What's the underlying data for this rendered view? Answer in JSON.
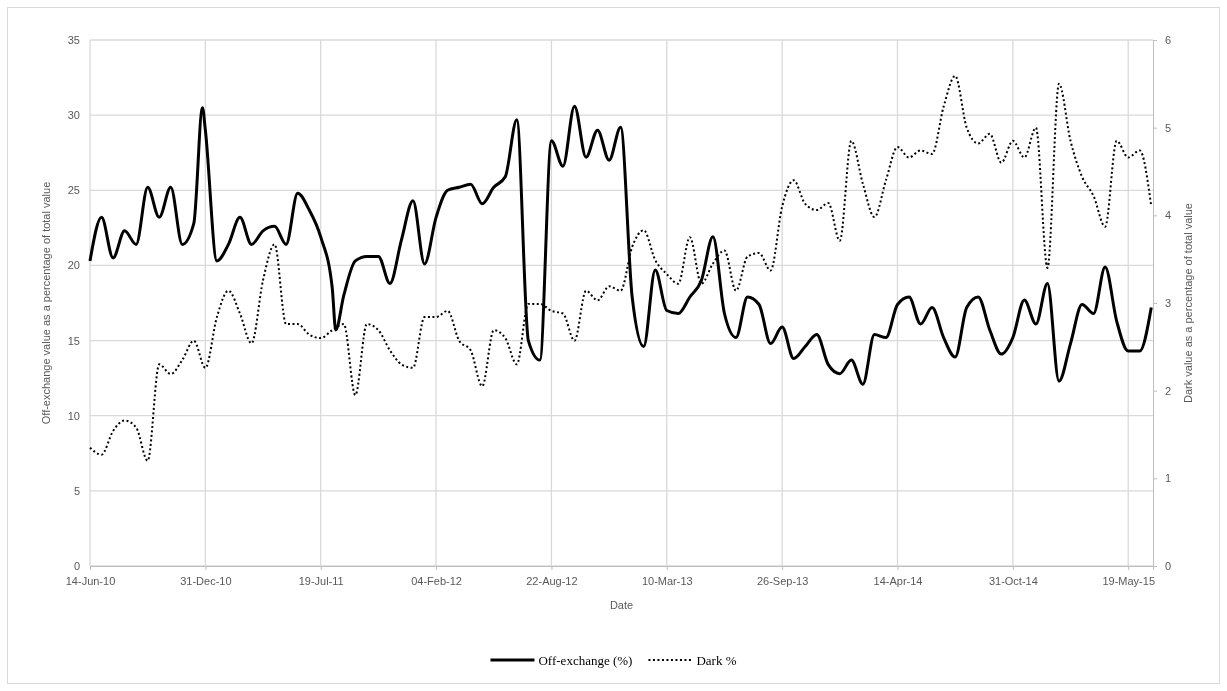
{
  "chart_data": {
    "type": "line",
    "xlabel": "Date",
    "ylabel": "Off-exchange value as a percentage of total value",
    "y2label": "Dark value as a percentage of total value",
    "xlim": [
      "2010-06-14",
      "2015-07-01"
    ],
    "xticks": [
      {
        "value": "2010-06-14",
        "label": "14-Jun-10"
      },
      {
        "value": "2010-12-31",
        "label": "31-Dec-10"
      },
      {
        "value": "2011-07-19",
        "label": "19-Jul-11"
      },
      {
        "value": "2012-02-04",
        "label": "04-Feb-12"
      },
      {
        "value": "2012-08-22",
        "label": "22-Aug-12"
      },
      {
        "value": "2013-03-10",
        "label": "10-Mar-13"
      },
      {
        "value": "2013-09-26",
        "label": "26-Sep-13"
      },
      {
        "value": "2014-04-14",
        "label": "14-Apr-14"
      },
      {
        "value": "2014-10-31",
        "label": "31-Oct-14"
      },
      {
        "value": "2015-05-19",
        "label": "19-May-15"
      }
    ],
    "ylim": [
      0,
      35
    ],
    "yticks": [
      0,
      5,
      10,
      15,
      20,
      25,
      30,
      35
    ],
    "y2lim": [
      0,
      6
    ],
    "y2ticks": [
      0,
      1,
      2,
      3,
      4,
      5,
      6
    ],
    "grid": true,
    "legend": "bottom",
    "series": [
      {
        "name": "Off-exchange (%)",
        "color": "#000000",
        "line_style": "solid",
        "x": [
          "2010-06-14",
          "2010-07-04",
          "2010-07-24",
          "2010-08-13",
          "2010-09-02",
          "2010-09-22",
          "2010-10-12",
          "2010-11-01",
          "2010-11-21",
          "2010-12-11",
          "2010-12-26",
          "2010-12-31",
          "2011-01-20",
          "2011-02-09",
          "2011-03-01",
          "2011-03-21",
          "2011-04-10",
          "2011-04-30",
          "2011-05-20",
          "2011-06-09",
          "2011-06-29",
          "2011-07-19",
          "2011-08-08",
          "2011-08-14",
          "2011-08-28",
          "2011-09-17",
          "2011-10-07",
          "2011-10-27",
          "2011-11-16",
          "2011-12-06",
          "2011-12-26",
          "2012-01-15",
          "2012-02-04",
          "2012-02-24",
          "2012-03-15",
          "2012-04-04",
          "2012-04-24",
          "2012-05-14",
          "2012-06-03",
          "2012-06-23",
          "2012-07-13",
          "2012-08-02",
          "2012-08-22",
          "2012-09-11",
          "2012-10-01",
          "2012-10-21",
          "2012-11-10",
          "2012-11-30",
          "2012-12-20",
          "2013-01-09",
          "2013-01-29",
          "2013-02-18",
          "2013-03-10",
          "2013-03-30",
          "2013-04-19",
          "2013-05-09",
          "2013-05-29",
          "2013-06-18",
          "2013-07-08",
          "2013-07-28",
          "2013-08-17",
          "2013-09-06",
          "2013-09-26",
          "2013-10-16",
          "2013-11-05",
          "2013-11-25",
          "2013-12-15",
          "2014-01-04",
          "2014-01-24",
          "2014-02-13",
          "2014-03-05",
          "2014-03-25",
          "2014-04-14",
          "2014-05-04",
          "2014-05-24",
          "2014-06-13",
          "2014-07-03",
          "2014-07-23",
          "2014-08-12",
          "2014-09-01",
          "2014-09-21",
          "2014-10-11",
          "2014-10-31",
          "2014-11-20",
          "2014-12-10",
          "2014-12-30",
          "2015-01-19",
          "2015-02-08",
          "2015-02-28",
          "2015-03-20",
          "2015-04-09",
          "2015-04-29",
          "2015-05-19",
          "2015-06-08",
          "2015-06-28"
        ],
        "values": [
          20.3,
          23.2,
          20.5,
          22.3,
          21.4,
          25.2,
          23.2,
          25.2,
          21.4,
          22.8,
          30.5,
          29,
          20.3,
          21.4,
          23.2,
          21.4,
          22.3,
          22.6,
          21.4,
          24.8,
          23.7,
          21.9,
          18.5,
          15.7,
          18,
          20.3,
          20.6,
          20.6,
          18.8,
          21.7,
          24.3,
          20.1,
          23.2,
          25,
          25.2,
          25.4,
          24.1,
          25.2,
          25.9,
          29.7,
          15,
          13.7,
          28.3,
          26.6,
          30.6,
          27.2,
          29,
          27,
          29.2,
          17.9,
          14.6,
          19.7,
          17,
          16.8,
          17.9,
          19,
          21.9,
          16.8,
          15.2,
          17.9,
          17.4,
          14.8,
          15.9,
          13.8,
          14.6,
          15.4,
          13.4,
          12.8,
          13.7,
          12.1,
          15.4,
          15.2,
          17.4,
          17.9,
          16.1,
          17.2,
          15.2,
          13.9,
          17.2,
          17.9,
          15.7,
          14.1,
          15.2,
          17.7,
          16.1,
          18.8,
          12.3,
          14.8,
          17.4,
          16.8,
          19.9,
          16.3,
          14.3,
          14.3,
          17.2
        ]
      },
      {
        "name": "Dark %",
        "color": "#000000",
        "line_style": "dotted",
        "axis": "y2",
        "x": [
          "2010-06-14",
          "2010-07-04",
          "2010-07-24",
          "2010-08-13",
          "2010-09-02",
          "2010-09-22",
          "2010-10-12",
          "2010-11-01",
          "2010-11-21",
          "2010-12-11",
          "2010-12-31",
          "2011-01-20",
          "2011-02-09",
          "2011-03-01",
          "2011-03-21",
          "2011-04-10",
          "2011-04-30",
          "2011-05-20",
          "2011-06-09",
          "2011-06-29",
          "2011-07-19",
          "2011-08-08",
          "2011-08-28",
          "2011-09-17",
          "2011-10-07",
          "2011-10-27",
          "2011-11-16",
          "2011-12-06",
          "2011-12-26",
          "2012-01-15",
          "2012-02-04",
          "2012-02-24",
          "2012-03-15",
          "2012-04-04",
          "2012-04-24",
          "2012-05-14",
          "2012-06-03",
          "2012-06-23",
          "2012-07-13",
          "2012-08-02",
          "2012-08-22",
          "2012-09-11",
          "2012-10-01",
          "2012-10-21",
          "2012-11-10",
          "2012-11-30",
          "2012-12-20",
          "2013-01-09",
          "2013-01-29",
          "2013-02-18",
          "2013-03-10",
          "2013-03-30",
          "2013-04-19",
          "2013-05-09",
          "2013-05-29",
          "2013-06-18",
          "2013-07-08",
          "2013-07-28",
          "2013-08-17",
          "2013-09-06",
          "2013-09-26",
          "2013-10-16",
          "2013-11-05",
          "2013-11-25",
          "2013-12-15",
          "2014-01-04",
          "2014-01-24",
          "2014-02-13",
          "2014-03-05",
          "2014-03-25",
          "2014-04-14",
          "2014-05-04",
          "2014-05-24",
          "2014-06-13",
          "2014-07-03",
          "2014-07-23",
          "2014-08-12",
          "2014-09-01",
          "2014-09-21",
          "2014-10-11",
          "2014-10-31",
          "2014-11-20",
          "2014-12-10",
          "2014-12-30",
          "2015-01-19",
          "2015-02-08",
          "2015-02-28",
          "2015-03-20",
          "2015-04-09",
          "2015-04-29",
          "2015-05-19",
          "2015-06-08",
          "2015-06-28"
        ],
        "values": [
          1.35,
          1.27,
          1.54,
          1.66,
          1.58,
          1.2,
          2.3,
          2.19,
          2.35,
          2.57,
          2.26,
          2.84,
          3.14,
          2.88,
          2.54,
          3.26,
          3.67,
          2.76,
          2.76,
          2.64,
          2.6,
          2.69,
          2.76,
          1.95,
          2.76,
          2.69,
          2.46,
          2.3,
          2.26,
          2.84,
          2.84,
          2.91,
          2.57,
          2.46,
          2.05,
          2.69,
          2.6,
          2.3,
          2.99,
          2.99,
          2.91,
          2.88,
          2.57,
          3.14,
          3.03,
          3.19,
          3.14,
          3.64,
          3.83,
          3.49,
          3.33,
          3.22,
          3.75,
          3.22,
          3.45,
          3.6,
          3.14,
          3.53,
          3.57,
          3.37,
          4.1,
          4.4,
          4.13,
          4.06,
          4.14,
          3.71,
          4.85,
          4.36,
          3.98,
          4.4,
          4.78,
          4.66,
          4.74,
          4.7,
          5.24,
          5.59,
          5.0,
          4.82,
          4.93,
          4.6,
          4.85,
          4.66,
          5.0,
          3.4,
          5.5,
          4.85,
          4.44,
          4.22,
          3.87,
          4.85,
          4.66,
          4.74,
          4.1
        ]
      }
    ]
  }
}
